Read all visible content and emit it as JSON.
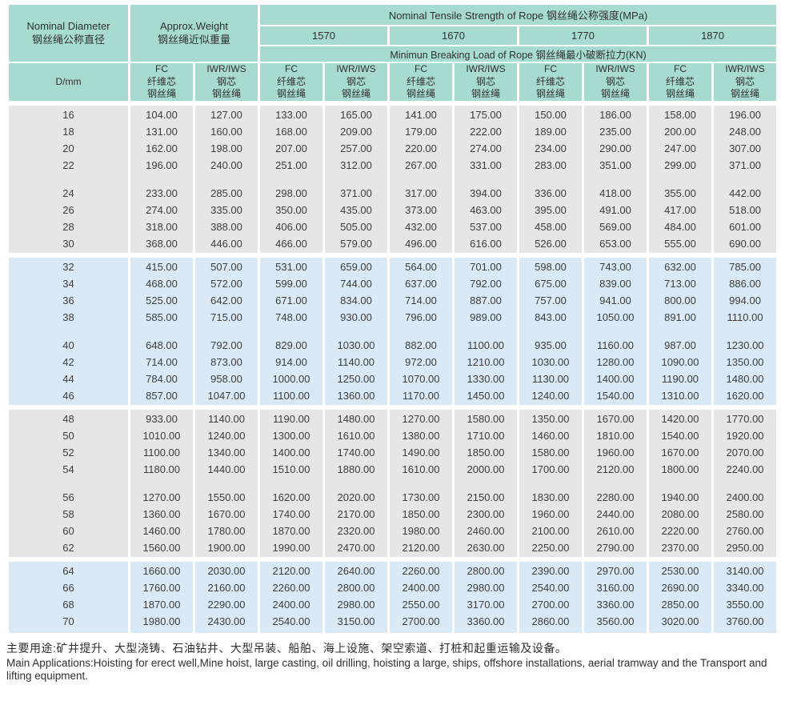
{
  "colors": {
    "header_bg": "#a7dbd2",
    "row_gray": "#e6e6e5",
    "row_blue": "#d9eaf6",
    "grid_white": "#ffffff",
    "text": "#3c3c3c"
  },
  "header": {
    "diameter_label": "Nominal Diameter\n钢丝绳公称直径",
    "weight_label": "Approx.Weight\n钢丝绳近似重量",
    "tensile_title": "Nominal Tensile Strength of Rope  钢丝绳公称强度(MPa)",
    "grades": [
      "1570",
      "1670",
      "1770",
      "1870"
    ],
    "breaking_title": "Minimun Breaking Load of Rope  钢丝绳最小破断拉力(KN)",
    "d_label": "D/mm",
    "fc_label": "FC\n纤维芯\n钢丝绳",
    "iwr_label": "IWR/IWS\n钢芯\n钢丝绳"
  },
  "table": {
    "blocks": [
      {
        "shade": "gray",
        "groups": [
          [
            [
              "16",
              "104.00",
              "127.00",
              "133.00",
              "165.00",
              "141.00",
              "175.00",
              "150.00",
              "186.00",
              "158.00",
              "196.00"
            ],
            [
              "18",
              "131.00",
              "160.00",
              "168.00",
              "209.00",
              "179.00",
              "222.00",
              "189.00",
              "235.00",
              "200.00",
              "248.00"
            ],
            [
              "20",
              "162.00",
              "198.00",
              "207.00",
              "257.00",
              "220.00",
              "274.00",
              "234.00",
              "290.00",
              "247.00",
              "307.00"
            ],
            [
              "22",
              "196.00",
              "240.00",
              "251.00",
              "312.00",
              "267.00",
              "331.00",
              "283.00",
              "351.00",
              "299.00",
              "371.00"
            ]
          ],
          [
            [
              "24",
              "233.00",
              "285.00",
              "298.00",
              "371.00",
              "317.00",
              "394.00",
              "336.00",
              "418.00",
              "355.00",
              "442.00"
            ],
            [
              "26",
              "274.00",
              "335.00",
              "350.00",
              "435.00",
              "373.00",
              "463.00",
              "395.00",
              "491.00",
              "417.00",
              "518.00"
            ],
            [
              "28",
              "318.00",
              "388.00",
              "406.00",
              "505.00",
              "432.00",
              "537.00",
              "458.00",
              "569.00",
              "484.00",
              "601.00"
            ],
            [
              "30",
              "368.00",
              "446.00",
              "466.00",
              "579.00",
              "496.00",
              "616.00",
              "526.00",
              "653.00",
              "555.00",
              "690.00"
            ]
          ]
        ]
      },
      {
        "shade": "blue",
        "groups": [
          [
            [
              "32",
              "415.00",
              "507.00",
              "531.00",
              "659.00",
              "564.00",
              "701.00",
              "598.00",
              "743.00",
              "632.00",
              "785.00"
            ],
            [
              "34",
              "468.00",
              "572.00",
              "599.00",
              "744.00",
              "637.00",
              "792.00",
              "675.00",
              "839.00",
              "713.00",
              "886.00"
            ],
            [
              "36",
              "525.00",
              "642.00",
              "671.00",
              "834.00",
              "714.00",
              "887.00",
              "757.00",
              "941.00",
              "800.00",
              "994.00"
            ],
            [
              "38",
              "585.00",
              "715.00",
              "748.00",
              "930.00",
              "796.00",
              "989.00",
              "843.00",
              "1050.00",
              "891.00",
              "1110.00"
            ]
          ],
          [
            [
              "40",
              "648.00",
              "792.00",
              "829.00",
              "1030.00",
              "882.00",
              "1100.00",
              "935.00",
              "1160.00",
              "987.00",
              "1230.00"
            ],
            [
              "42",
              "714.00",
              "873.00",
              "914.00",
              "1140.00",
              "972.00",
              "1210.00",
              "1030.00",
              "1280.00",
              "1090.00",
              "1350.00"
            ],
            [
              "44",
              "784.00",
              "958.00",
              "1000.00",
              "1250.00",
              "1070.00",
              "1330.00",
              "1130.00",
              "1400.00",
              "1190.00",
              "1480.00"
            ],
            [
              "46",
              "857.00",
              "1047.00",
              "1100.00",
              "1360.00",
              "1170.00",
              "1450.00",
              "1240.00",
              "1540.00",
              "1310.00",
              "1620.00"
            ]
          ]
        ]
      },
      {
        "shade": "gray",
        "groups": [
          [
            [
              "48",
              "933.00",
              "1140.00",
              "1190.00",
              "1480.00",
              "1270.00",
              "1580.00",
              "1350.00",
              "1670.00",
              "1420.00",
              "1770.00"
            ],
            [
              "50",
              "1010.00",
              "1240.00",
              "1300.00",
              "1610.00",
              "1380.00",
              "1710.00",
              "1460.00",
              "1810.00",
              "1540.00",
              "1920.00"
            ],
            [
              "52",
              "1100.00",
              "1340.00",
              "1400.00",
              "1740.00",
              "1490.00",
              "1850.00",
              "1580.00",
              "1960.00",
              "1670.00",
              "2070.00"
            ],
            [
              "54",
              "1180.00",
              "1440.00",
              "1510.00",
              "1880.00",
              "1610.00",
              "2000.00",
              "1700.00",
              "2120.00",
              "1800.00",
              "2240.00"
            ]
          ],
          [
            [
              "56",
              "1270.00",
              "1550.00",
              "1620.00",
              "2020.00",
              "1730.00",
              "2150.00",
              "1830.00",
              "2280.00",
              "1940.00",
              "2400.00"
            ],
            [
              "58",
              "1360.00",
              "1670.00",
              "1740.00",
              "2170.00",
              "1850.00",
              "2300.00",
              "1960.00",
              "2440.00",
              "2080.00",
              "2580.00"
            ],
            [
              "60",
              "1460.00",
              "1780.00",
              "1870.00",
              "2320.00",
              "1980.00",
              "2460.00",
              "2100.00",
              "2610.00",
              "2220.00",
              "2760.00"
            ],
            [
              "62",
              "1560.00",
              "1900.00",
              "1990.00",
              "2470.00",
              "2120.00",
              "2630.00",
              "2250.00",
              "2790.00",
              "2370.00",
              "2950.00"
            ]
          ]
        ]
      },
      {
        "shade": "blue",
        "groups": [
          [
            [
              "64",
              "1660.00",
              "2030.00",
              "2120.00",
              "2640.00",
              "2260.00",
              "2800.00",
              "2390.00",
              "2970.00",
              "2530.00",
              "3140.00"
            ],
            [
              "66",
              "1760.00",
              "2160.00",
              "2260.00",
              "2800.00",
              "2400.00",
              "2980.00",
              "2540.00",
              "3160.00",
              "2690.00",
              "3340.00"
            ],
            [
              "68",
              "1870.00",
              "2290.00",
              "2400.00",
              "2980.00",
              "2550.00",
              "3170.00",
              "2700.00",
              "3360.00",
              "2850.00",
              "3550.00"
            ],
            [
              "70",
              "1980.00",
              "2430.00",
              "2540.00",
              "3150.00",
              "2700.00",
              "3360.00",
              "2860.00",
              "3560.00",
              "3020.00",
              "3760.00"
            ]
          ]
        ]
      }
    ]
  },
  "footer": {
    "zh": "主要用途:矿井提升、大型浇铸、石油钻井、大型吊装、船舶、海上设施、架空索道、打桩和起重运输及设备。",
    "en": "Main Applications:Hoisting for erect well,Mine hoist, large casting, oil drilling, hoisting a large, ships, offshore installations, aerial tramway and the Transport and lifting equipment."
  }
}
